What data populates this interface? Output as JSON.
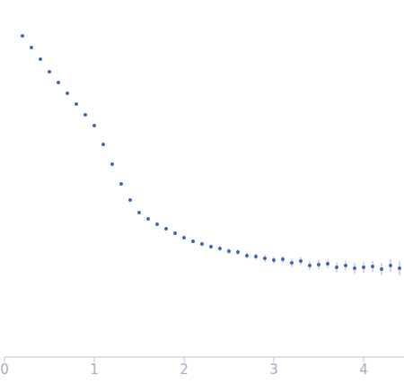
{
  "chart_data": {
    "type": "scatter",
    "color": "#3a63b8",
    "marker": "circle",
    "tick_labels": "x",
    "grid": false,
    "x": [
      0.2,
      0.3,
      0.4,
      0.5,
      0.6,
      0.7,
      0.8,
      0.9,
      1.0,
      1.1,
      1.2,
      1.3,
      1.4,
      1.5,
      1.6,
      1.7,
      1.8,
      1.9,
      2.0,
      2.1,
      2.2,
      2.3,
      2.4,
      2.5,
      2.6,
      2.7,
      2.8,
      2.9,
      3.0,
      3.1,
      3.2,
      3.3,
      3.4,
      3.5,
      3.6,
      3.7,
      3.8,
      3.9,
      4.0,
      4.1,
      4.2,
      4.3,
      4.4
    ],
    "values": [
      2.9,
      2.77,
      2.64,
      2.5,
      2.38,
      2.26,
      2.14,
      2.02,
      1.9,
      1.69,
      1.47,
      1.25,
      1.07,
      0.93,
      0.86,
      0.8,
      0.75,
      0.7,
      0.65,
      0.61,
      0.58,
      0.55,
      0.53,
      0.5,
      0.49,
      0.45,
      0.44,
      0.42,
      0.4,
      0.41,
      0.37,
      0.39,
      0.34,
      0.35,
      0.36,
      0.32,
      0.34,
      0.31,
      0.32,
      0.33,
      0.3,
      0.34,
      0.31
    ],
    "errors": [
      0.01,
      0.01,
      0.01,
      0.01,
      0.01,
      0.01,
      0.01,
      0.01,
      0.01,
      0.01,
      0.01,
      0.01,
      0.01,
      0.01,
      0.015,
      0.015,
      0.02,
      0.02,
      0.02,
      0.02,
      0.025,
      0.025,
      0.03,
      0.03,
      0.03,
      0.035,
      0.035,
      0.04,
      0.04,
      0.04,
      0.045,
      0.045,
      0.05,
      0.05,
      0.05,
      0.055,
      0.055,
      0.06,
      0.06,
      0.065,
      0.07,
      0.075,
      0.08
    ],
    "xlim": [
      0,
      4.45
    ],
    "xticks": [
      0,
      1,
      2,
      3,
      4
    ],
    "ylim": [
      -0.68,
      3.3
    ],
    "yticks": [
      1,
      2,
      3
    ]
  }
}
